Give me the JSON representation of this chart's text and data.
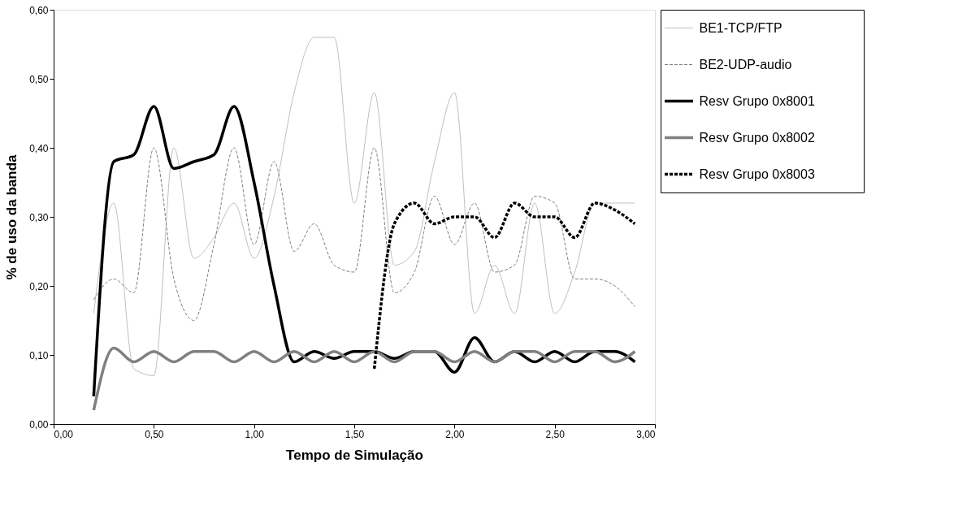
{
  "chart_data": {
    "type": "line",
    "xlabel": "Tempo de Simulação",
    "ylabel": "% de uso da banda",
    "x": [
      0.2,
      0.3,
      0.4,
      0.5,
      0.6,
      0.7,
      0.8,
      0.9,
      1.0,
      1.1,
      1.2,
      1.3,
      1.4,
      1.5,
      1.6,
      1.7,
      1.8,
      1.9,
      2.0,
      2.1,
      2.2,
      2.3,
      2.4,
      2.5,
      2.6,
      2.7,
      2.8,
      2.9
    ],
    "xlim": [
      0,
      3
    ],
    "ylim": [
      0,
      0.6
    ],
    "xticks": [
      {
        "value": 0,
        "label": "0,00"
      },
      {
        "value": 0.5,
        "label": "0,50"
      },
      {
        "value": 1,
        "label": "1,00"
      },
      {
        "value": 1.5,
        "label": "1,50"
      },
      {
        "value": 2,
        "label": "2,00"
      },
      {
        "value": 2.5,
        "label": "2,50"
      },
      {
        "value": 3,
        "label": "3,00"
      }
    ],
    "yticks": [
      {
        "value": 0,
        "label": "0,00"
      },
      {
        "value": 0.1,
        "label": "0,10"
      },
      {
        "value": 0.2,
        "label": "0,20"
      },
      {
        "value": 0.3,
        "label": "0,30"
      },
      {
        "value": 0.4,
        "label": "0,40"
      },
      {
        "value": 0.5,
        "label": "0,50"
      },
      {
        "value": 0.6,
        "label": "0,60"
      }
    ],
    "grid": false,
    "legend": "top right",
    "marker": "none",
    "series": [
      {
        "name": "BE1-TCP/FTP",
        "color": "#c0c0c0",
        "line_style": "solid",
        "values": [
          0.16,
          0.32,
          0.08,
          0.07,
          0.4,
          0.24,
          0.27,
          0.32,
          0.24,
          0.33,
          0.48,
          0.56,
          0.56,
          0.32,
          0.48,
          0.23,
          0.25,
          0.38,
          0.48,
          0.16,
          0.23,
          0.16,
          0.32,
          0.16,
          0.22,
          0.32,
          0.32,
          0.32
        ]
      },
      {
        "name": "BE2-UDP-audio",
        "color": "#808080",
        "line_style": "dashed",
        "values": [
          0.18,
          0.21,
          0.19,
          0.4,
          0.21,
          0.15,
          0.26,
          0.4,
          0.26,
          0.38,
          0.25,
          0.29,
          0.23,
          0.22,
          0.4,
          0.19,
          0.22,
          0.33,
          0.26,
          0.32,
          0.22,
          0.23,
          0.33,
          0.32,
          0.21,
          0.21,
          0.2,
          0.17
        ]
      },
      {
        "name": "Resv Grupo 0x8001",
        "color": "#000000",
        "line_style": "solid",
        "values": [
          0.04,
          0.38,
          0.39,
          0.46,
          0.37,
          0.38,
          0.39,
          0.46,
          0.35,
          0.2,
          0.09,
          0.105,
          0.095,
          0.105,
          0.105,
          0.095,
          0.105,
          0.105,
          0.075,
          0.125,
          0.09,
          0.105,
          0.09,
          0.105,
          0.09,
          0.105,
          0.105,
          0.09
        ]
      },
      {
        "name": "Resv Grupo 0x8002",
        "color": "#808080",
        "line_style": "solid",
        "values": [
          0.02,
          0.11,
          0.09,
          0.105,
          0.09,
          0.105,
          0.105,
          0.09,
          0.105,
          0.09,
          0.105,
          0.09,
          0.105,
          0.09,
          0.105,
          0.09,
          0.105,
          0.105,
          0.09,
          0.105,
          0.09,
          0.105,
          0.105,
          0.09,
          0.105,
          0.105,
          0.09,
          0.105
        ]
      },
      {
        "name": "Resv Grupo 0x8003",
        "color": "#000000",
        "line_style": "dashed",
        "x": [
          1.6,
          1.7,
          1.8,
          1.9,
          2.0,
          2.1,
          2.2,
          2.3,
          2.4,
          2.5,
          2.6,
          2.7,
          2.8,
          2.9
        ],
        "values": [
          0.08,
          0.29,
          0.32,
          0.29,
          0.3,
          0.3,
          0.27,
          0.32,
          0.3,
          0.3,
          0.27,
          0.32,
          0.31,
          0.29
        ]
      }
    ]
  }
}
